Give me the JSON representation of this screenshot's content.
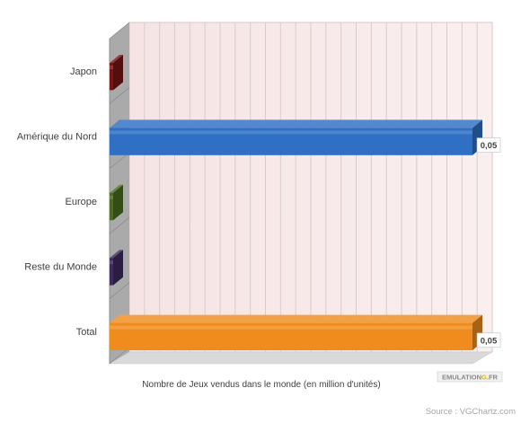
{
  "chart_data": {
    "type": "bar",
    "orientation": "horizontal",
    "style": "3d",
    "categories": [
      "Japon",
      "Amérique du Nord",
      "Europe",
      "Reste du Monde",
      "Total"
    ],
    "values": [
      0,
      0.05,
      0,
      0,
      0.05
    ],
    "data_labels": [
      "",
      "0,05",
      "",
      "",
      "0,05"
    ],
    "colors": [
      "#7a1414",
      "#2f6fc4",
      "#4a6c1e",
      "#3d2a5e",
      "#f08c1e"
    ],
    "xlabel": "Nombre de Jeux vendus dans le monde (en million d'unités)",
    "ylabel": "",
    "xlim": [
      0,
      0.05
    ],
    "grid": true,
    "legend": "none"
  },
  "watermark": "EMULATIONG FR",
  "source": "Source : VGChartz.com"
}
